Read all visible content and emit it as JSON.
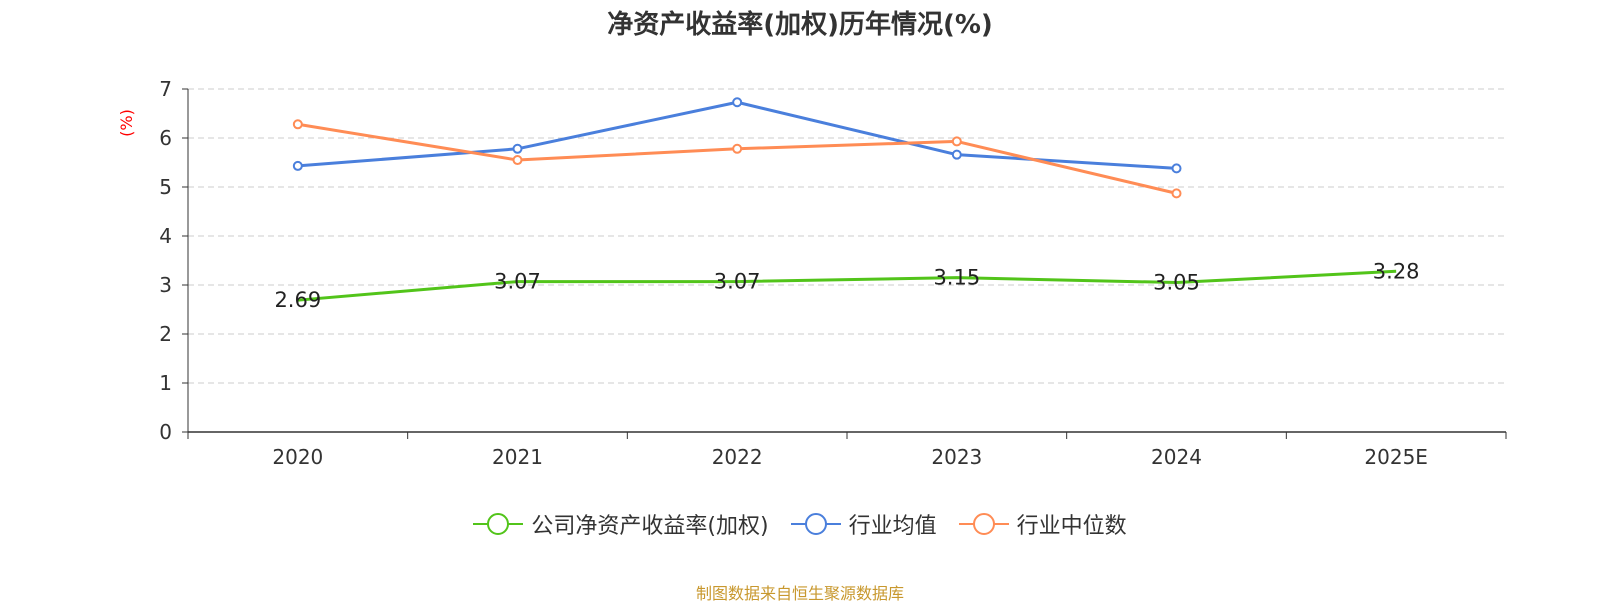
{
  "chart_data": {
    "type": "line",
    "title": "净资产收益率(加权)历年情况(%)",
    "ylabel": "(%)",
    "xlabel": "",
    "categories": [
      "2020",
      "2021",
      "2022",
      "2023",
      "2024",
      "2025E"
    ],
    "ylim": [
      0,
      7
    ],
    "yticks": [
      0,
      1,
      2,
      3,
      4,
      5,
      6,
      7
    ],
    "grid": true,
    "legend_position": "bottom",
    "series": [
      {
        "name": "公司净资产收益率(加权)",
        "color": "#52c41a",
        "values": [
          2.69,
          3.07,
          3.07,
          3.15,
          3.05,
          3.28
        ],
        "data_labels": [
          "2.69",
          "3.07",
          "3.07",
          "3.15",
          "3.05",
          "3.28"
        ],
        "markers": false
      },
      {
        "name": "行业均值",
        "color": "#4a7fdc",
        "values": [
          5.43,
          5.78,
          6.73,
          5.66,
          5.38,
          null
        ],
        "markers": true
      },
      {
        "name": "行业中位数",
        "color": "#ff8c55",
        "values": [
          6.28,
          5.55,
          5.78,
          5.93,
          4.87,
          null
        ],
        "markers": true
      }
    ]
  },
  "source_note": "制图数据来自恒生聚源数据库",
  "colors": {
    "axis": "#333333",
    "grid": "#cccccc",
    "ylabel": "#ff0000",
    "source": "#c8982e"
  }
}
